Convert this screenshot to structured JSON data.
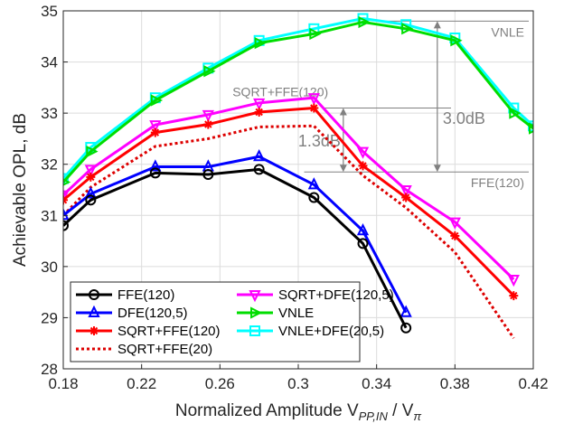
{
  "chart_data": {
    "type": "line",
    "title": "",
    "xlabel": {
      "main": "Normalized Amplitude V",
      "sub1": "PP,IN",
      "mid": " / V",
      "sub2": "π"
    },
    "ylabel": "Achievable OPL, dB",
    "xlim": [
      0.18,
      0.42
    ],
    "ylim": [
      28,
      35
    ],
    "xticks": [
      0.18,
      0.22,
      0.26,
      0.3,
      0.34,
      0.38,
      0.42
    ],
    "xtick_labels": [
      "0.18",
      "0.22",
      "0.26",
      "0.3",
      "0.34",
      "0.38",
      "0.42"
    ],
    "yticks": [
      28,
      29,
      30,
      31,
      32,
      33,
      34,
      35
    ],
    "ytick_labels": [
      "28",
      "29",
      "30",
      "31",
      "32",
      "33",
      "34",
      "35"
    ],
    "grid": true,
    "legend_position": "bottom-left",
    "series": [
      {
        "name": "FFE(120)",
        "color": "#000000",
        "dash": "",
        "marker": "circle",
        "x": [
          0.18,
          0.194,
          0.227,
          0.254,
          0.28,
          0.308,
          0.333,
          0.355
        ],
        "y": [
          30.8,
          31.3,
          31.83,
          31.8,
          31.9,
          31.35,
          30.45,
          28.8
        ]
      },
      {
        "name": "DFE(120,5)",
        "color": "#0000ff",
        "dash": "",
        "marker": "triangle-up",
        "x": [
          0.18,
          0.194,
          0.227,
          0.254,
          0.28,
          0.308,
          0.333,
          0.355
        ],
        "y": [
          31.0,
          31.42,
          31.95,
          31.95,
          32.15,
          31.6,
          30.7,
          29.1
        ]
      },
      {
        "name": "SQRT+FFE(120)",
        "color": "#ff0000",
        "dash": "",
        "marker": "asterisk",
        "x": [
          0.18,
          0.194,
          0.227,
          0.254,
          0.28,
          0.308,
          0.333,
          0.355,
          0.38,
          0.41
        ],
        "y": [
          31.3,
          31.75,
          32.62,
          32.78,
          33.02,
          33.1,
          31.97,
          31.35,
          30.6,
          29.43
        ]
      },
      {
        "name": "SQRT+FFE(20)",
        "color": "#dd0000",
        "dash": "3,3",
        "marker": "none",
        "x": [
          0.18,
          0.194,
          0.227,
          0.254,
          0.28,
          0.308,
          0.333,
          0.355,
          0.38,
          0.41
        ],
        "y": [
          31.0,
          31.55,
          32.35,
          32.5,
          32.73,
          32.75,
          31.78,
          31.15,
          30.28,
          28.6
        ]
      },
      {
        "name": "SQRT+DFE(120,5)",
        "color": "#ff00ff",
        "dash": "",
        "marker": "triangle-down",
        "x": [
          0.18,
          0.194,
          0.227,
          0.254,
          0.28,
          0.308,
          0.333,
          0.355,
          0.38,
          0.41
        ],
        "y": [
          31.4,
          31.9,
          32.77,
          32.97,
          33.2,
          33.3,
          32.25,
          31.5,
          30.87,
          29.75
        ]
      },
      {
        "name": "VNLE",
        "color": "#00dd00",
        "dash": "",
        "marker": "triangle-right",
        "x": [
          0.18,
          0.194,
          0.227,
          0.254,
          0.28,
          0.308,
          0.333,
          0.355,
          0.38,
          0.41,
          0.42
        ],
        "y": [
          31.65,
          32.25,
          33.25,
          33.82,
          34.37,
          34.55,
          34.78,
          34.65,
          34.42,
          33.0,
          32.7
        ]
      },
      {
        "name": "VNLE+DFE(20,5)",
        "color": "#00ffff",
        "dash": "",
        "marker": "square",
        "x": [
          0.18,
          0.194,
          0.227,
          0.254,
          0.28,
          0.308,
          0.333,
          0.355,
          0.38,
          0.41,
          0.42
        ],
        "y": [
          31.72,
          32.33,
          33.3,
          33.88,
          34.42,
          34.65,
          34.85,
          34.73,
          34.47,
          33.1,
          32.75
        ]
      }
    ],
    "annotations": {
      "vnle_label": "VNLE",
      "sqrt_label": "SQRT+FFE(120)",
      "ffe_label": "FFE(120)",
      "gap_small": "1.3dB",
      "gap_large": "3.0dB",
      "ref_levels": {
        "vnle": 34.8,
        "sqrt": 33.1,
        "ffe": 31.85
      },
      "arrow_x_small": 0.323,
      "arrow_x_large": 0.371
    }
  }
}
